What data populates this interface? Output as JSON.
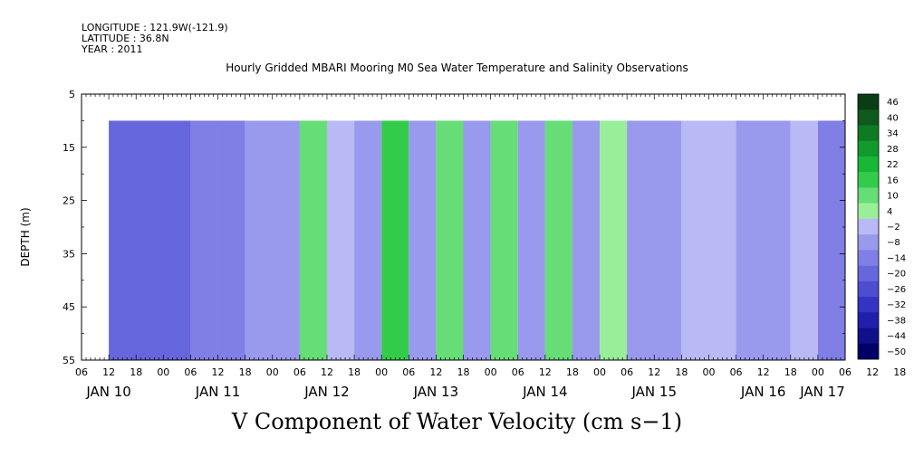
{
  "header": {
    "longitude": "LONGITUDE : 121.9W(-121.9)",
    "latitude": "LATITUDE : 36.8N",
    "year": "YEAR : 2011"
  },
  "chart_data": {
    "type": "heatmap",
    "title": "Hourly Gridded MBARI Mooring M0 Sea Water Temperature and Salinity Observations",
    "bottom_title": "V Component of Water Velocity (cm s−1)",
    "ylabel": "DEPTH (m)",
    "ylim": [
      5,
      55
    ],
    "y_ticks": [
      5,
      15,
      25,
      35,
      45,
      55
    ],
    "data_depth_range": [
      10,
      55
    ],
    "x_hour_ticks": [
      "06",
      "12",
      "18",
      "00",
      "06",
      "12",
      "18",
      "00",
      "06",
      "12",
      "18",
      "00",
      "06",
      "12",
      "18",
      "00",
      "06",
      "12",
      "18",
      "00",
      "06",
      "12",
      "18",
      "00",
      "06",
      "12",
      "18",
      "00",
      "06",
      "12",
      "18",
      "00",
      "06",
      "12",
      "18",
      "00",
      "06"
    ],
    "x_day_labels": [
      "JAN 10",
      "JAN 11",
      "JAN 12",
      "JAN 13",
      "JAN 14",
      "JAN 15",
      "JAN 16",
      "JAN 17"
    ],
    "x_start": "JAN 10 06",
    "data_start": "JAN 10 12",
    "x_end": "JAN 17 06",
    "colorbar": {
      "levels": [
        "46",
        "40",
        "34",
        "28",
        "22",
        "16",
        "10",
        "4",
        "−2",
        "−8",
        "−14",
        "−20",
        "−26",
        "−32",
        "−38",
        "−44",
        "−50"
      ],
      "colors": [
        "#0a3d14",
        "#0d5a1c",
        "#0f7a24",
        "#129a2c",
        "#16b836",
        "#33cc4a",
        "#66dd77",
        "#99ee99",
        "#b9b9f5",
        "#9999ee",
        "#7f7fe6",
        "#6666dd",
        "#4d4dd1",
        "#3333c4",
        "#1f1faa",
        "#10108a",
        "#000066"
      ]
    },
    "bands": [
      {
        "start": "JAN 10 12",
        "end": "JAN 11 06",
        "value": -15
      },
      {
        "start": "JAN 11 06",
        "end": "JAN 11 12",
        "value": -10
      },
      {
        "start": "JAN 11 12",
        "end": "JAN 11 18",
        "value": -14
      },
      {
        "start": "JAN 11 18",
        "end": "JAN 12 06",
        "value": -3
      },
      {
        "start": "JAN 12 06",
        "end": "JAN 12 12",
        "value": 14
      },
      {
        "start": "JAN 12 12",
        "end": "JAN 12 18",
        "value": 2
      },
      {
        "start": "JAN 12 18",
        "end": "JAN 13 00",
        "value": -6
      },
      {
        "start": "JAN 13 00",
        "end": "JAN 13 06",
        "value": 16
      },
      {
        "start": "JAN 13 06",
        "end": "JAN 13 12",
        "value": -8
      },
      {
        "start": "JAN 13 12",
        "end": "JAN 13 18",
        "value": 10
      },
      {
        "start": "JAN 13 18",
        "end": "JAN 14 00",
        "value": -6
      },
      {
        "start": "JAN 14 00",
        "end": "JAN 14 06",
        "value": 12
      },
      {
        "start": "JAN 14 06",
        "end": "JAN 14 12",
        "value": -4
      },
      {
        "start": "JAN 14 12",
        "end": "JAN 14 18",
        "value": 12
      },
      {
        "start": "JAN 14 18",
        "end": "JAN 15 00",
        "value": -5
      },
      {
        "start": "JAN 15 00",
        "end": "JAN 15 06",
        "value": 8
      },
      {
        "start": "JAN 15 06",
        "end": "JAN 15 18",
        "value": -6
      },
      {
        "start": "JAN 15 18",
        "end": "JAN 16 06",
        "value": -2
      },
      {
        "start": "JAN 16 06",
        "end": "JAN 16 18",
        "value": -4
      },
      {
        "start": "JAN 16 18",
        "end": "JAN 17 00",
        "value": 2
      },
      {
        "start": "JAN 17 00",
        "end": "JAN 17 06",
        "value": -9
      }
    ]
  }
}
